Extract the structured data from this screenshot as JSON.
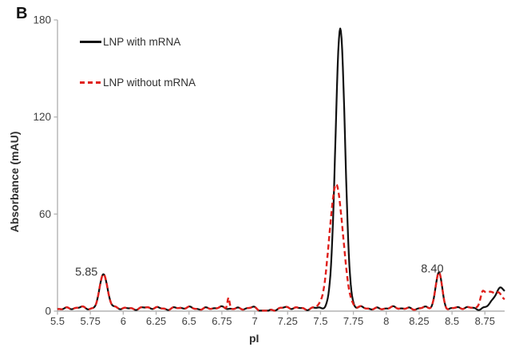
{
  "figure": {
    "panel_label": "B"
  },
  "chart_data": {
    "type": "line",
    "title": "",
    "xlabel": "pI",
    "ylabel": "Absorbance (mAU)",
    "xlim": [
      5.5,
      8.9
    ],
    "ylim": [
      0,
      180
    ],
    "grid": false,
    "legend_position": "top-left-inside",
    "axis_color": "#b3b3b3",
    "tick_text_color": "#3f3f3f",
    "x_ticks": [
      {
        "value": 5.5,
        "label": "5.5"
      },
      {
        "value": 5.75,
        "label": "5.75"
      },
      {
        "value": 6,
        "label": "6"
      },
      {
        "value": 6.25,
        "label": "6.25"
      },
      {
        "value": 6.5,
        "label": "6.5"
      },
      {
        "value": 6.75,
        "label": "6.75"
      },
      {
        "value": 7,
        "label": "7"
      },
      {
        "value": 7.25,
        "label": "7.25"
      },
      {
        "value": 7.5,
        "label": "7.5"
      },
      {
        "value": 7.75,
        "label": "7.75"
      },
      {
        "value": 8,
        "label": "8"
      },
      {
        "value": 8.25,
        "label": "8.25"
      },
      {
        "value": 8.5,
        "label": "8.5"
      },
      {
        "value": 8.75,
        "label": "8.75"
      }
    ],
    "y_ticks": [
      {
        "value": 0,
        "label": "0"
      },
      {
        "value": 60,
        "label": "60"
      },
      {
        "value": 120,
        "label": "120"
      },
      {
        "value": 180,
        "label": "180"
      }
    ],
    "annotations": [
      {
        "text": "5.85",
        "x": 5.72,
        "y": 22
      },
      {
        "text": "8.40",
        "x": 8.35,
        "y": 24
      }
    ],
    "series": [
      {
        "name": "LNP with mRNA",
        "color": "#111111",
        "style": "solid",
        "stroke_width": 2.2,
        "baseline_mAU": 1.8,
        "noise_mAU": 1.1,
        "seed": 2.0,
        "peaks": [
          {
            "center_pI": 5.85,
            "height_mAU": 22,
            "sigma": 0.028
          },
          {
            "center_pI": 7.65,
            "height_mAU": 174,
            "sigma": 0.036
          },
          {
            "center_pI": 8.4,
            "height_mAU": 22,
            "sigma": 0.024
          },
          {
            "center_pI": 7.08,
            "height_mAU": -2,
            "sigma": 0.04
          },
          {
            "center_pI": 8.87,
            "height_mAU": 3,
            "sigma": 0.025
          }
        ],
        "steps": [
          {
            "center_pI": 8.8,
            "height_mAU": 9,
            "width": 0.018
          }
        ]
      },
      {
        "name": "LNP without mRNA",
        "color": "#e0201c",
        "style": "dashed",
        "stroke_width": 2.4,
        "dash_pattern": "6.5 4",
        "baseline_mAU": 1.8,
        "noise_mAU": 1.1,
        "seed": 2.0,
        "peaks": [
          {
            "center_pI": 5.85,
            "height_mAU": 22,
            "sigma": 0.028
          },
          {
            "center_pI": 6.8,
            "height_mAU": 7,
            "sigma": 0.008
          },
          {
            "center_pI": 7.62,
            "height_mAU": 77,
            "sigma": 0.05
          },
          {
            "center_pI": 8.4,
            "height_mAU": 22,
            "sigma": 0.024
          },
          {
            "center_pI": 7.08,
            "height_mAU": -2,
            "sigma": 0.04
          },
          {
            "center_pI": 8.73,
            "height_mAU": 2,
            "sigma": 0.01
          }
        ],
        "steps": [
          {
            "center_pI": 8.71,
            "height_mAU": 10,
            "width": 0.012
          },
          {
            "center_pI": 8.87,
            "height_mAU": -5,
            "width": 0.012
          }
        ]
      }
    ]
  }
}
